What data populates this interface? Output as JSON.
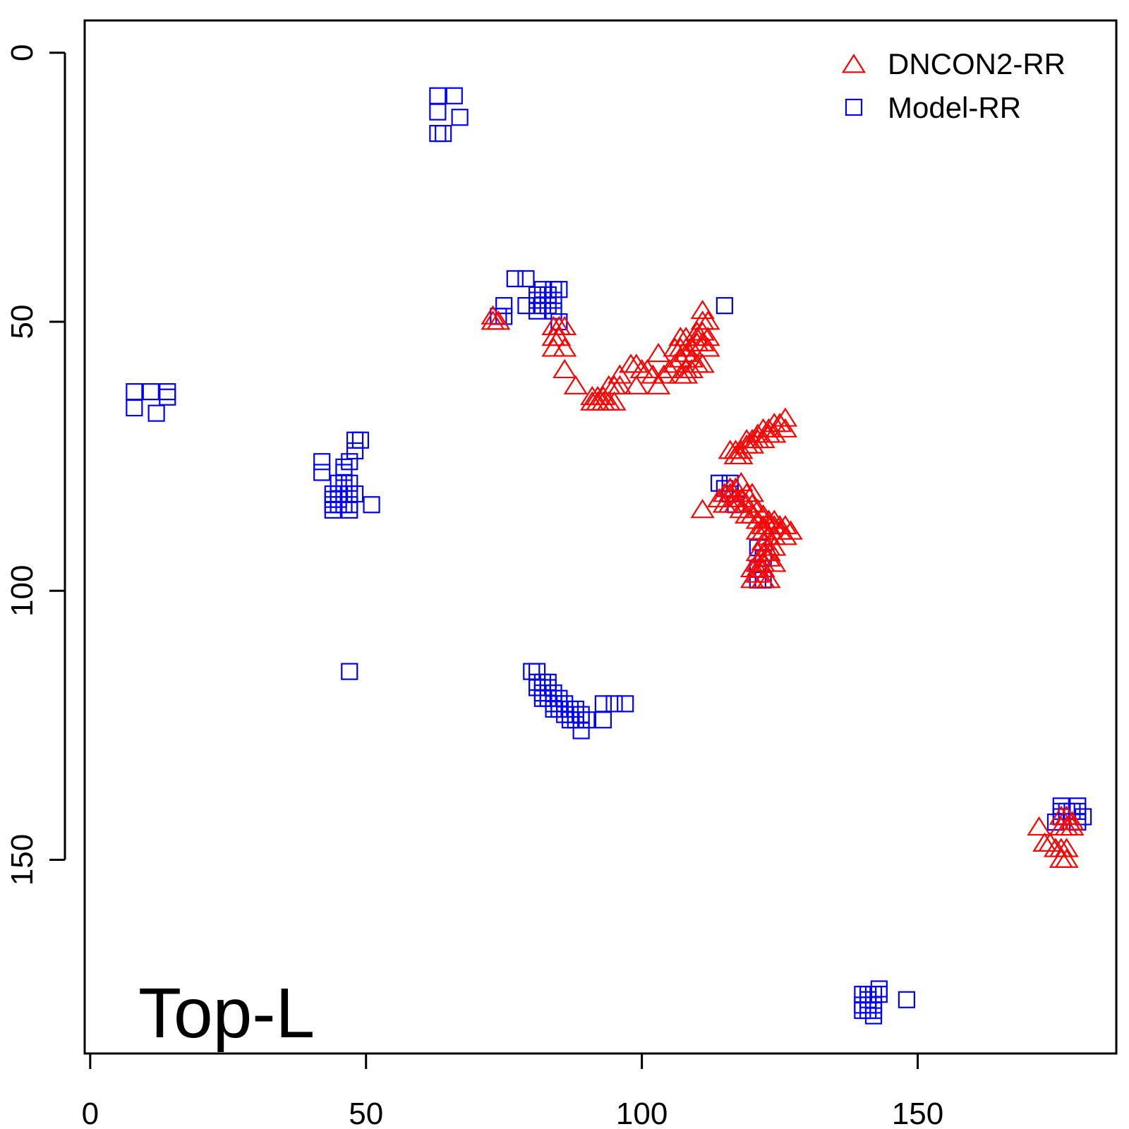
{
  "chart_data": {
    "type": "scatter",
    "title": "",
    "xlabel": "",
    "ylabel": "",
    "xlim": [
      -1,
      186
    ],
    "ylim": [
      186,
      -6
    ],
    "y_inverted": true,
    "grid": false,
    "legend_position": "top-right",
    "x_ticks": [
      0,
      50,
      100,
      150
    ],
    "y_ticks": [
      0,
      50,
      100,
      150
    ],
    "annotation": "Top-L",
    "annotation_position": "bottom-left",
    "series": [
      {
        "name": "DNCON2-RR",
        "marker": "triangle",
        "color": "#ff0000",
        "points": [
          [
            73,
            49
          ],
          [
            73,
            50
          ],
          [
            74,
            50
          ],
          [
            84,
            51
          ],
          [
            85,
            51
          ],
          [
            86,
            51
          ],
          [
            84,
            53
          ],
          [
            85,
            53
          ],
          [
            84,
            55
          ],
          [
            86,
            55
          ],
          [
            86,
            59
          ],
          [
            88,
            62
          ],
          [
            91,
            64
          ],
          [
            92,
            64
          ],
          [
            93,
            64
          ],
          [
            91,
            65
          ],
          [
            92,
            65
          ],
          [
            93,
            65
          ],
          [
            94,
            65
          ],
          [
            95,
            65
          ],
          [
            94,
            62
          ],
          [
            95,
            62
          ],
          [
            96,
            62
          ],
          [
            96,
            60
          ],
          [
            98,
            58
          ],
          [
            99,
            58
          ],
          [
            99,
            62
          ],
          [
            100,
            59
          ],
          [
            101,
            59
          ],
          [
            103,
            56
          ],
          [
            102,
            60
          ],
          [
            104,
            60
          ],
          [
            103,
            62
          ],
          [
            105,
            59
          ],
          [
            106,
            58
          ],
          [
            107,
            57
          ],
          [
            108,
            56
          ],
          [
            106,
            55
          ],
          [
            107,
            55
          ],
          [
            108,
            55
          ],
          [
            109,
            55
          ],
          [
            107,
            53
          ],
          [
            108,
            53
          ],
          [
            110,
            52
          ],
          [
            111,
            52
          ],
          [
            110,
            54
          ],
          [
            111,
            54
          ],
          [
            112,
            55
          ],
          [
            109,
            57
          ],
          [
            110,
            58
          ],
          [
            111,
            58
          ],
          [
            108,
            59
          ],
          [
            109,
            59
          ],
          [
            107,
            60
          ],
          [
            108,
            60
          ],
          [
            111,
            50
          ],
          [
            112,
            50
          ],
          [
            111,
            48
          ],
          [
            110,
            53
          ],
          [
            112,
            53
          ],
          [
            116,
            74
          ],
          [
            117,
            74
          ],
          [
            118,
            74
          ],
          [
            119,
            72
          ],
          [
            120,
            72
          ],
          [
            121,
            71
          ],
          [
            122,
            70
          ],
          [
            123,
            70
          ],
          [
            124,
            69
          ],
          [
            125,
            69
          ],
          [
            126,
            68
          ],
          [
            121,
            72
          ],
          [
            122,
            72
          ],
          [
            123,
            71
          ],
          [
            124,
            71
          ],
          [
            126,
            70
          ],
          [
            120,
            73
          ],
          [
            117,
            75
          ],
          [
            118,
            75
          ],
          [
            119,
            73
          ],
          [
            111,
            85
          ],
          [
            114,
            83
          ],
          [
            115,
            82
          ],
          [
            116,
            81
          ],
          [
            117,
            81
          ],
          [
            118,
            80
          ],
          [
            115,
            84
          ],
          [
            116,
            84
          ],
          [
            117,
            83
          ],
          [
            118,
            83
          ],
          [
            119,
            82
          ],
          [
            120,
            82
          ],
          [
            116,
            82
          ],
          [
            117,
            84
          ],
          [
            118,
            85
          ],
          [
            119,
            84
          ],
          [
            120,
            84
          ],
          [
            121,
            85
          ],
          [
            122,
            86
          ],
          [
            123,
            87
          ],
          [
            124,
            87
          ],
          [
            125,
            88
          ],
          [
            126,
            88
          ],
          [
            127,
            89
          ],
          [
            119,
            86
          ],
          [
            120,
            86
          ],
          [
            121,
            87
          ],
          [
            122,
            88
          ],
          [
            123,
            88
          ],
          [
            124,
            88
          ],
          [
            125,
            89
          ],
          [
            126,
            90
          ],
          [
            121,
            89
          ],
          [
            122,
            89
          ],
          [
            123,
            90
          ],
          [
            124,
            90
          ],
          [
            122,
            91
          ],
          [
            123,
            92
          ],
          [
            124,
            92
          ],
          [
            121,
            93
          ],
          [
            122,
            93
          ],
          [
            123,
            93
          ],
          [
            121,
            95
          ],
          [
            122,
            95
          ],
          [
            123,
            94
          ],
          [
            120,
            96
          ],
          [
            121,
            96
          ],
          [
            122,
            96
          ],
          [
            124,
            95
          ],
          [
            121,
            97
          ],
          [
            122,
            98
          ],
          [
            123,
            98
          ],
          [
            120,
            98
          ],
          [
            172,
            144
          ],
          [
            176,
            142
          ],
          [
            177,
            142
          ],
          [
            178,
            143
          ],
          [
            176,
            144
          ],
          [
            177,
            144
          ],
          [
            178,
            144
          ],
          [
            173,
            147
          ],
          [
            174,
            147
          ],
          [
            175,
            148
          ],
          [
            176,
            148
          ],
          [
            177,
            148
          ],
          [
            176,
            150
          ],
          [
            177,
            150
          ]
        ]
      },
      {
        "name": "Model-RR",
        "marker": "square",
        "color": "#0000ff",
        "points": [
          [
            63,
            8
          ],
          [
            66,
            8
          ],
          [
            63,
            11
          ],
          [
            67,
            12
          ],
          [
            63,
            15
          ],
          [
            64,
            15
          ],
          [
            77,
            42
          ],
          [
            79,
            42
          ],
          [
            82,
            44
          ],
          [
            84,
            44
          ],
          [
            85,
            44
          ],
          [
            83,
            45
          ],
          [
            84,
            46
          ],
          [
            82,
            47
          ],
          [
            81,
            46
          ],
          [
            79,
            47
          ],
          [
            81,
            48
          ],
          [
            75,
            47
          ],
          [
            74,
            49
          ],
          [
            75,
            49
          ],
          [
            84,
            48
          ],
          [
            85,
            50
          ],
          [
            115,
            47
          ],
          [
            81,
            45
          ],
          [
            83,
            47
          ],
          [
            8,
            63
          ],
          [
            11,
            63
          ],
          [
            14,
            63
          ],
          [
            14,
            64
          ],
          [
            8,
            66
          ],
          [
            12,
            67
          ],
          [
            48,
            72
          ],
          [
            49,
            72
          ],
          [
            48,
            74
          ],
          [
            42,
            76
          ],
          [
            42,
            78
          ],
          [
            46,
            78
          ],
          [
            46,
            80
          ],
          [
            47,
            80
          ],
          [
            45,
            82
          ],
          [
            46,
            82
          ],
          [
            47,
            82
          ],
          [
            44,
            83
          ],
          [
            45,
            83
          ],
          [
            44,
            84
          ],
          [
            45,
            84
          ],
          [
            46,
            84
          ],
          [
            47,
            84
          ],
          [
            51,
            84
          ],
          [
            44,
            85
          ],
          [
            47,
            85
          ],
          [
            48,
            82
          ],
          [
            44,
            82
          ],
          [
            46,
            77
          ],
          [
            47,
            76
          ],
          [
            45,
            80
          ],
          [
            114,
            80
          ],
          [
            115,
            81
          ],
          [
            116,
            80
          ],
          [
            116,
            82
          ],
          [
            117,
            84
          ],
          [
            121,
            92
          ],
          [
            122,
            94
          ],
          [
            121,
            96
          ],
          [
            121,
            98
          ],
          [
            122,
            98
          ],
          [
            47,
            115
          ],
          [
            80,
            115
          ],
          [
            81,
            115
          ],
          [
            81,
            117
          ],
          [
            82,
            117
          ],
          [
            83,
            117
          ],
          [
            81,
            118
          ],
          [
            82,
            118
          ],
          [
            83,
            118
          ],
          [
            82,
            119
          ],
          [
            83,
            119
          ],
          [
            84,
            119
          ],
          [
            82,
            120
          ],
          [
            83,
            120
          ],
          [
            84,
            120
          ],
          [
            85,
            120
          ],
          [
            84,
            121
          ],
          [
            85,
            121
          ],
          [
            86,
            121
          ],
          [
            85,
            122
          ],
          [
            86,
            122
          ],
          [
            87,
            122
          ],
          [
            88,
            122
          ],
          [
            86,
            123
          ],
          [
            87,
            123
          ],
          [
            88,
            123
          ],
          [
            89,
            123
          ],
          [
            87,
            124
          ],
          [
            88,
            124
          ],
          [
            89,
            124
          ],
          [
            90,
            124
          ],
          [
            89,
            126
          ],
          [
            93,
            121
          ],
          [
            95,
            121
          ],
          [
            97,
            121
          ],
          [
            93,
            124
          ],
          [
            84,
            122
          ],
          [
            176,
            140
          ],
          [
            179,
            140
          ],
          [
            176,
            142
          ],
          [
            177,
            141
          ],
          [
            178,
            141
          ],
          [
            179,
            141
          ],
          [
            180,
            142
          ],
          [
            175,
            143
          ],
          [
            179,
            143
          ],
          [
            176,
            141
          ],
          [
            140,
            175
          ],
          [
            141,
            175
          ],
          [
            142,
            175
          ],
          [
            143,
            175
          ],
          [
            140,
            177
          ],
          [
            141,
            177
          ],
          [
            142,
            177
          ],
          [
            141,
            178
          ],
          [
            142,
            178
          ],
          [
            140,
            178
          ],
          [
            142,
            179
          ],
          [
            148,
            176
          ],
          [
            143,
            174
          ],
          [
            141,
            176
          ]
        ]
      }
    ]
  }
}
